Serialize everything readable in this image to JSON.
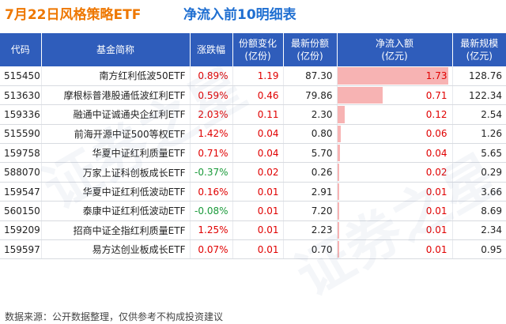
{
  "title": {
    "left": "7月22日风格策略ETF",
    "right": "净流入前10明细表"
  },
  "colors": {
    "title_left": "#ee7700",
    "title_right": "#1f6fd1",
    "header_bg": "#2f5dbb",
    "positive": "#e00000",
    "negative": "#1a9a3a",
    "flow_bar": "#f7b3b3"
  },
  "chart_data": {
    "type": "table",
    "headers": [
      "代码",
      "基金简称",
      "涨跌幅",
      "份额变化\n(亿份)",
      "最新份额\n(亿份)",
      "净流入额\n(亿元)",
      "最新规模\n(亿元)"
    ],
    "rows": [
      {
        "code": "515450",
        "name": "南方红利低波50ETF",
        "change": "0.89%",
        "share_change": "1.19",
        "latest_share": "87.30",
        "net_inflow": "1.73",
        "scale": "128.76"
      },
      {
        "code": "513630",
        "name": "摩根标普港股通低波红利ETF",
        "change": "0.59%",
        "share_change": "0.46",
        "latest_share": "79.86",
        "net_inflow": "0.71",
        "scale": "122.34"
      },
      {
        "code": "159336",
        "name": "融通中证诚通央企红利ETF",
        "change": "2.03%",
        "share_change": "0.11",
        "latest_share": "2.30",
        "net_inflow": "0.12",
        "scale": "2.54"
      },
      {
        "code": "515590",
        "name": "前海开源中证500等权ETF",
        "change": "1.42%",
        "share_change": "0.04",
        "latest_share": "0.80",
        "net_inflow": "0.06",
        "scale": "1.26"
      },
      {
        "code": "159758",
        "name": "华夏中证红利质量ETF",
        "change": "0.71%",
        "share_change": "0.04",
        "latest_share": "5.70",
        "net_inflow": "0.04",
        "scale": "5.65"
      },
      {
        "code": "588070",
        "name": "万家上证科创板成长ETF",
        "change": "-0.37%",
        "share_change": "0.02",
        "latest_share": "0.26",
        "net_inflow": "0.02",
        "scale": "0.29"
      },
      {
        "code": "159547",
        "name": "华夏中证红利低波动ETF",
        "change": "0.16%",
        "share_change": "0.01",
        "latest_share": "2.91",
        "net_inflow": "0.01",
        "scale": "3.66"
      },
      {
        "code": "560150",
        "name": "泰康中证红利低波动ETF",
        "change": "-0.08%",
        "share_change": "0.01",
        "latest_share": "7.20",
        "net_inflow": "0.01",
        "scale": "8.69"
      },
      {
        "code": "159209",
        "name": "招商中证全指红利质量ETF",
        "change": "1.25%",
        "share_change": "0.01",
        "latest_share": "2.23",
        "net_inflow": "0.01",
        "scale": "2.34"
      },
      {
        "code": "159597",
        "name": "易方达创业板成长ETF",
        "change": "0.07%",
        "share_change": "0.01",
        "latest_share": "0.70",
        "net_inflow": "0.01",
        "scale": "0.95"
      }
    ]
  },
  "footer": "数据来源：公开数据整理，仅供参考不构成投资建议",
  "watermark": "证券之星"
}
